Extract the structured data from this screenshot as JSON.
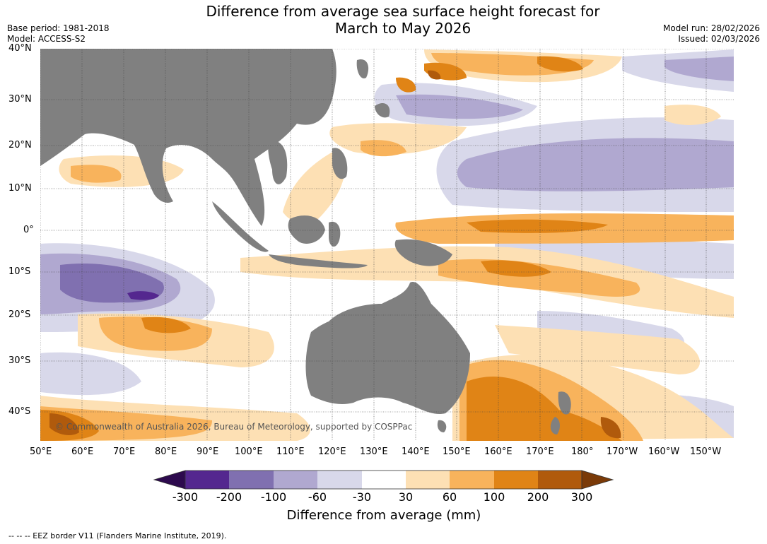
{
  "title_line1": "Difference from average sea surface height forecast for",
  "title_line2": "March to May 2026",
  "meta": {
    "base_period": "Base period: 1981-2018",
    "model": "Model: ACCESS-S2",
    "model_run": "Model run: 28/02/2026",
    "issued": "Issued: 02/03/2026"
  },
  "lat_labels": [
    "40°N",
    "30°N",
    "20°N",
    "10°N",
    "0°",
    "10°S",
    "20°S",
    "30°S",
    "40°S"
  ],
  "lon_labels": [
    "50°E",
    "60°E",
    "70°E",
    "80°E",
    "90°E",
    "100°E",
    "110°E",
    "120°E",
    "130°E",
    "140°E",
    "150°E",
    "160°E",
    "170°E",
    "180°",
    "170°W",
    "160°W",
    "150°W"
  ],
  "copyright": "© Commonwealth of Australia 2026, Bureau of Meteorology, supported by COSPPac",
  "legend": {
    "ticks": [
      "-300",
      "-200",
      "-100",
      "-60",
      "-30",
      "30",
      "60",
      "100",
      "200",
      "300"
    ],
    "colors": [
      "#2d0a4e",
      "#54278f",
      "#8070b0",
      "#b0a8d0",
      "#d8d8ea",
      "#ffffff",
      "#fde0b4",
      "#f8b35c",
      "#e08416",
      "#b05a0c",
      "#7a3a08"
    ],
    "title": "Difference from average (mm)"
  },
  "footnote": "--  --  -- EEZ border V11 (Flanders Marine Institute, 2019).",
  "colors": {
    "land": "#808080",
    "grid": "#444444"
  }
}
